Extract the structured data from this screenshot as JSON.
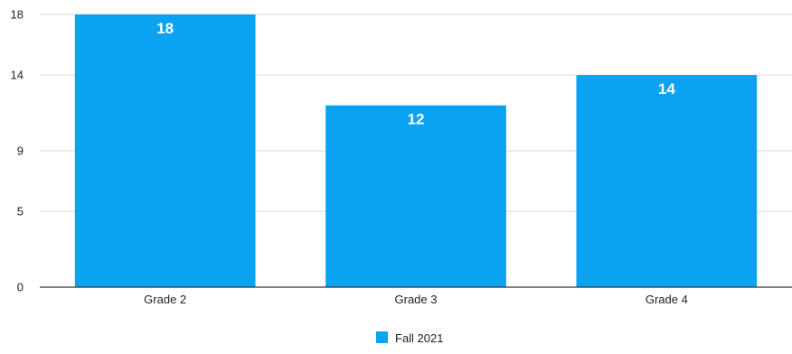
{
  "chart_data": {
    "type": "bar",
    "title": "",
    "xlabel": "",
    "ylabel": "",
    "categories": [
      "Grade 2",
      "Grade 3",
      "Grade 4"
    ],
    "series": [
      {
        "name": "Fall 2021",
        "values": [
          18,
          12,
          14
        ],
        "data_labels": [
          "18",
          "12",
          "14"
        ],
        "color": "#0aa3f2"
      }
    ],
    "y_ticks": [
      0,
      5,
      9,
      14,
      18
    ],
    "y_tick_labels": [
      "0",
      "5",
      "9",
      "14",
      "18"
    ],
    "ylim": [
      0,
      18
    ],
    "grid": true,
    "legend_position": "bottom"
  }
}
